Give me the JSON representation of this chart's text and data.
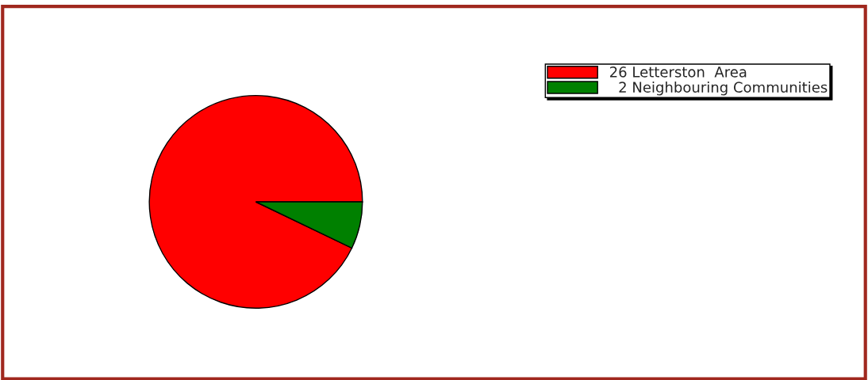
{
  "chart_data": {
    "type": "pie",
    "categories": [
      "26 Letterston  Area",
      "  2 Neighbouring Communities"
    ],
    "values": [
      26,
      2
    ],
    "colors": [
      "#ff0000",
      "#008000"
    ],
    "legend": "top right"
  }
}
